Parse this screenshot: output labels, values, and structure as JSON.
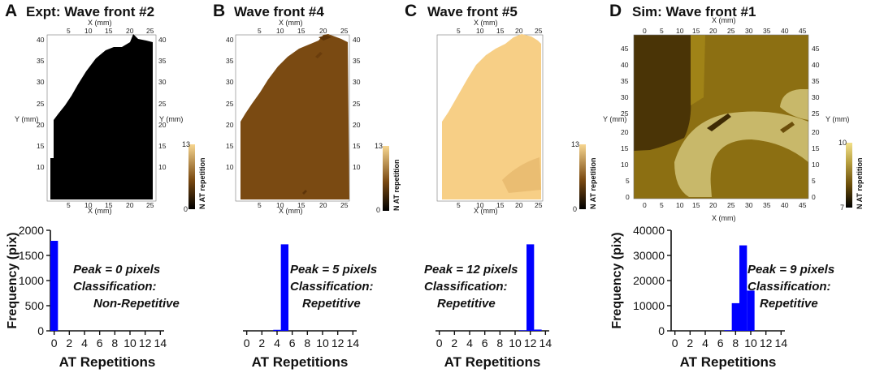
{
  "colors": {
    "bar": "#0000FF",
    "mapA": "#000000",
    "mapB": "#7A4A12",
    "mapB_patch": "#6A3D0C",
    "mapC": "#F7CF86",
    "mapC_patch": "#EABD72",
    "mapD_dark": "#4A3406",
    "mapD_mid": "#8C6F12",
    "mapD_light": "#C8B86A",
    "cb_low": "#000000",
    "cb_mid": "#8B5A1A",
    "cb_high": "#F7D690",
    "cbD_low": "#000000",
    "cbD_high": "#F2E08A"
  },
  "panels": [
    {
      "letter": "A",
      "title": "Expt: Wave front #2",
      "map": {
        "x_label": "X (mm)",
        "y_label": "Y (mm)",
        "x_ticks": [
          "5",
          "10",
          "15",
          "20",
          "25"
        ],
        "y_ticks": [
          "10",
          "15",
          "20",
          "25",
          "30",
          "35",
          "40"
        ],
        "colorbar": {
          "label": "N AT repetition",
          "min": "0",
          "max": "13"
        }
      }
    },
    {
      "letter": "B",
      "title": "Wave front #4",
      "map": {
        "x_label": "X (mm)",
        "x_ticks": [
          "5",
          "10",
          "15",
          "20",
          "25"
        ],
        "y_ticks": [
          "10",
          "15",
          "20",
          "25",
          "30",
          "35",
          "40"
        ],
        "colorbar": {
          "label": "N AT repetition",
          "min": "0",
          "max": "13"
        }
      }
    },
    {
      "letter": "C",
      "title": "Wave front #5",
      "map": {
        "x_label": "X (mm)",
        "x_ticks": [
          "5",
          "10",
          "15",
          "20",
          "25"
        ],
        "colorbar": {
          "label": "N AT repetition",
          "min": "0",
          "max": "13"
        }
      }
    },
    {
      "letter": "D",
      "title": "Sim: Wave front #1",
      "map": {
        "x_label": "X (mm)",
        "y_label": "Y (mm)",
        "x_ticks": [
          "0",
          "5",
          "10",
          "15",
          "20",
          "25",
          "30",
          "35",
          "40",
          "45"
        ],
        "y_ticks": [
          "0",
          "5",
          "10",
          "15",
          "20",
          "25",
          "30",
          "35",
          "40",
          "45"
        ],
        "colorbar": {
          "label": "N AT repetition",
          "min": "7",
          "max": "10"
        }
      }
    }
  ],
  "chart_data": [
    {
      "type": "bar",
      "panel": "A",
      "title": "Expt: Wave front #2",
      "xlabel": "AT Repetitions",
      "ylabel": "Frequency (pix)",
      "x": [
        0,
        1,
        2,
        3,
        4,
        5,
        6,
        7,
        8,
        9,
        10,
        11,
        12,
        13,
        14
      ],
      "values": [
        1790,
        0,
        0,
        0,
        0,
        0,
        0,
        0,
        0,
        0,
        0,
        0,
        0,
        0,
        0
      ],
      "xlim": [
        -0.5,
        14.5
      ],
      "ylim": [
        0,
        2000
      ],
      "xticks": [
        0,
        2,
        4,
        6,
        8,
        10,
        12,
        14
      ],
      "yticks": [
        0,
        500,
        1000,
        1500,
        2000
      ],
      "annotations": [
        "Peak = 0 pixels",
        "Classification:",
        "Non-Repetitive"
      ]
    },
    {
      "type": "bar",
      "panel": "B",
      "title": "Wave front #4",
      "xlabel": "AT Repetitions",
      "ylabel": "",
      "x": [
        0,
        1,
        2,
        3,
        4,
        5,
        6,
        7,
        8,
        9,
        10,
        11,
        12,
        13,
        14
      ],
      "values": [
        0,
        0,
        0,
        0,
        20,
        1720,
        0,
        0,
        0,
        0,
        0,
        0,
        0,
        0,
        0
      ],
      "xlim": [
        -0.5,
        14.5
      ],
      "ylim": [
        0,
        2000
      ],
      "xticks": [
        0,
        2,
        4,
        6,
        8,
        10,
        12,
        14
      ],
      "annotations": [
        "Peak = 5 pixels",
        "Classification:",
        "Repetitive"
      ]
    },
    {
      "type": "bar",
      "panel": "C",
      "title": "Wave front #5",
      "xlabel": "AT Repetitions",
      "ylabel": "",
      "x": [
        0,
        1,
        2,
        3,
        4,
        5,
        6,
        7,
        8,
        9,
        10,
        11,
        12,
        13,
        14
      ],
      "values": [
        0,
        0,
        0,
        0,
        0,
        0,
        0,
        0,
        0,
        0,
        0,
        10,
        1720,
        25,
        0
      ],
      "xlim": [
        -0.5,
        14.5
      ],
      "ylim": [
        0,
        2000
      ],
      "xticks": [
        0,
        2,
        4,
        6,
        8,
        10,
        12,
        14
      ],
      "annotations": [
        "Peak = 12 pixels",
        "Classification:",
        "Repetitive"
      ]
    },
    {
      "type": "bar",
      "panel": "D",
      "title": "Sim: Wave front #1",
      "xlabel": "AT Repetitions",
      "ylabel": "Frequency (pix)",
      "x": [
        0,
        1,
        2,
        3,
        4,
        5,
        6,
        7,
        8,
        9,
        10,
        11,
        12,
        13,
        14
      ],
      "values": [
        0,
        0,
        0,
        0,
        0,
        0,
        0,
        250,
        11000,
        34000,
        16000,
        0,
        0,
        0,
        0
      ],
      "xlim": [
        -0.5,
        14.5
      ],
      "ylim": [
        0,
        40000
      ],
      "xticks": [
        0,
        2,
        4,
        6,
        8,
        10,
        12,
        14
      ],
      "yticks": [
        0,
        10000,
        20000,
        30000,
        40000
      ],
      "annotations": [
        "Peak = 9 pixels",
        "Classification:",
        "Repetitive"
      ]
    }
  ]
}
